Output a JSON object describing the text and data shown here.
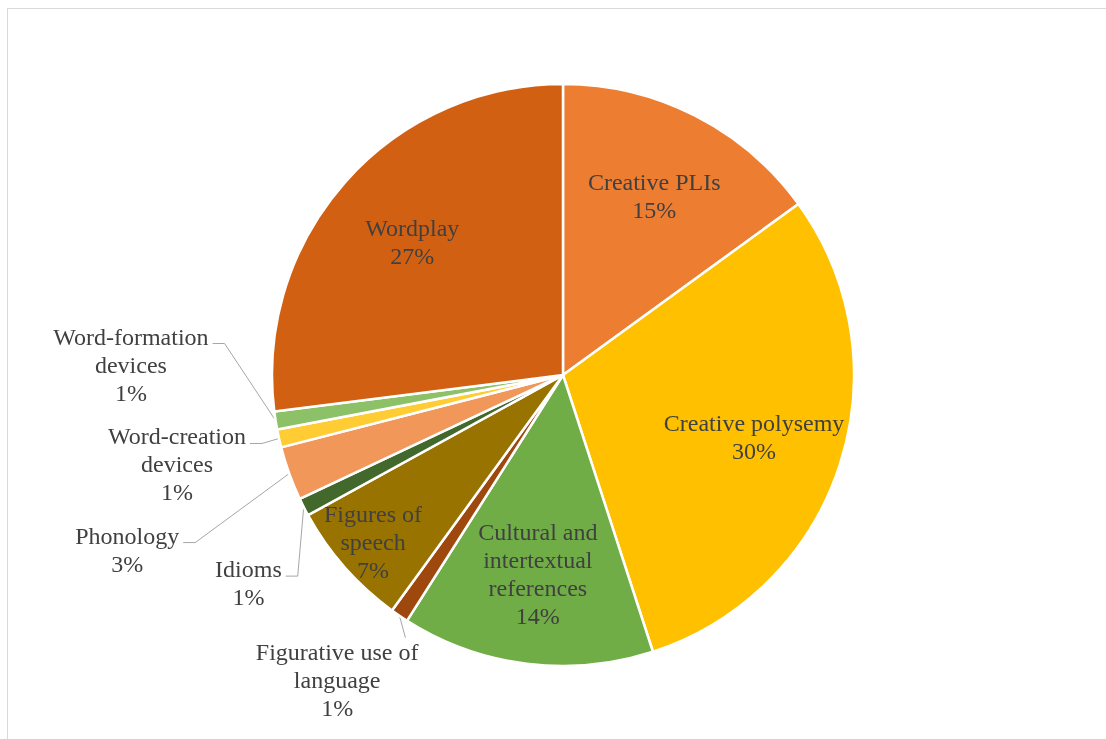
{
  "chart_data": {
    "type": "pie",
    "categories": [
      "Creative PLIs",
      "Creative polysemy",
      "Cultural and intertextual references",
      "Figurative use of language",
      "Figures of speech",
      "Idioms",
      "Phonology",
      "Word-creation devices",
      "Word-formation devices",
      "Wordplay"
    ],
    "values": [
      15,
      30,
      14,
      1,
      7,
      1,
      3,
      1,
      1,
      27
    ],
    "colors": [
      "#ed7d31",
      "#ffc000",
      "#70ad47",
      "#9e480e",
      "#997300",
      "#43682b",
      "#f1975a",
      "#ffcd33",
      "#8cc168",
      "#d26012"
    ],
    "value_labels": [
      "15%",
      "30%",
      "14%",
      "1%",
      "7%",
      "1%",
      "3%",
      "1%",
      "1%",
      "27%"
    ]
  }
}
